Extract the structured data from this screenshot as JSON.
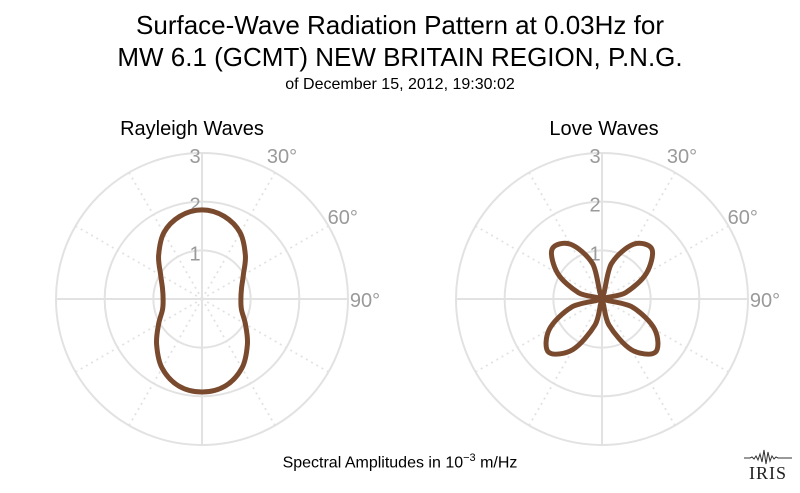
{
  "title": {
    "line1": "Surface-Wave Radiation Pattern at 0.03Hz for",
    "line2": "MW 6.1 (GCMT) NEW BRITAIN REGION, P.N.G.",
    "line3": "of December 15, 2012, 19:30:02"
  },
  "footer": {
    "prefix": "Spectral Amplitudes in ",
    "base": "10",
    "exponent": "−3",
    "unit": " m/Hz"
  },
  "logo": {
    "text": "IRIS"
  },
  "colors": {
    "pattern": "#7a4a2e",
    "grid": "#e2e2e2",
    "tick_label": "#9a9a9a"
  },
  "chart_data": [
    {
      "type": "polar",
      "title": "Rayleigh Waves",
      "radial_ticks": [
        "1",
        "2",
        "3"
      ],
      "rlim": [
        0,
        3
      ],
      "angle_ticks": [
        "30°",
        "60°",
        "90°"
      ],
      "series": [
        {
          "theta_deg": [
            0,
            15,
            30,
            45,
            60,
            75,
            90,
            105,
            120,
            135,
            150,
            165,
            180,
            195,
            210,
            225,
            240,
            255,
            270,
            285,
            300,
            315,
            330,
            345
          ],
          "r": [
            1.83,
            1.76,
            1.57,
            1.26,
            0.98,
            0.84,
            0.8,
            0.84,
            1.03,
            1.32,
            1.64,
            1.85,
            1.91,
            1.85,
            1.64,
            1.32,
            1.03,
            0.84,
            0.8,
            0.84,
            0.98,
            1.26,
            1.57,
            1.76
          ]
        }
      ]
    },
    {
      "type": "polar",
      "title": "Love Waves",
      "radial_ticks": [
        "1",
        "2",
        "3"
      ],
      "rlim": [
        0,
        3
      ],
      "angle_ticks": [
        "30°",
        "60°",
        "90°"
      ],
      "series": [
        {
          "theta_deg": [
            0,
            15,
            30,
            45,
            60,
            75,
            90,
            105,
            120,
            135,
            150,
            165,
            180,
            195,
            210,
            225,
            240,
            255,
            270,
            285,
            300,
            315,
            330,
            345
          ],
          "r": [
            0.05,
            0.75,
            1.3,
            1.45,
            1.05,
            0.5,
            0.05,
            0.65,
            1.25,
            1.55,
            1.2,
            0.55,
            0.05,
            0.55,
            1.2,
            1.55,
            1.25,
            0.65,
            0.05,
            0.5,
            1.05,
            1.45,
            1.3,
            0.75
          ]
        }
      ]
    }
  ]
}
